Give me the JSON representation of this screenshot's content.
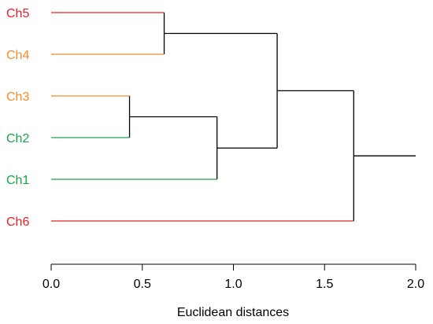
{
  "chart_data": {
    "type": "dendrogram",
    "xlabel": "Euclidean distances",
    "xlim": [
      0,
      2.0
    ],
    "ticks": [
      {
        "value": 0.0,
        "label": "0.0"
      },
      {
        "value": 0.5,
        "label": "0.5"
      },
      {
        "value": 1.0,
        "label": "1.0"
      },
      {
        "value": 1.5,
        "label": "1.5"
      },
      {
        "value": 2.0,
        "label": "2.0"
      }
    ],
    "leaves": [
      {
        "label": "Ch5",
        "color": "#e8202a"
      },
      {
        "label": "Ch4",
        "color": "#f28c28"
      },
      {
        "label": "Ch3",
        "color": "#f28c28"
      },
      {
        "label": "Ch2",
        "color": "#1aa34a"
      },
      {
        "label": "Ch1",
        "color": "#1aa34a"
      },
      {
        "label": "Ch6",
        "color": "#e8202a"
      }
    ],
    "merges": [
      {
        "left": "Ch5",
        "right": "Ch4",
        "height": 0.62
      },
      {
        "left": "Ch3",
        "right": "Ch2",
        "height": 0.43
      },
      {
        "left": "Ch3+Ch2",
        "right": "Ch1",
        "height": 0.91
      },
      {
        "left": "Ch5+Ch4",
        "right": "Ch3+Ch2+Ch1",
        "height": 1.24
      },
      {
        "left": "Ch5+Ch4+Ch3+Ch2+Ch1",
        "right": "Ch6",
        "height": 1.66
      }
    ],
    "root_height": 2.0,
    "link_color": "#000000"
  }
}
